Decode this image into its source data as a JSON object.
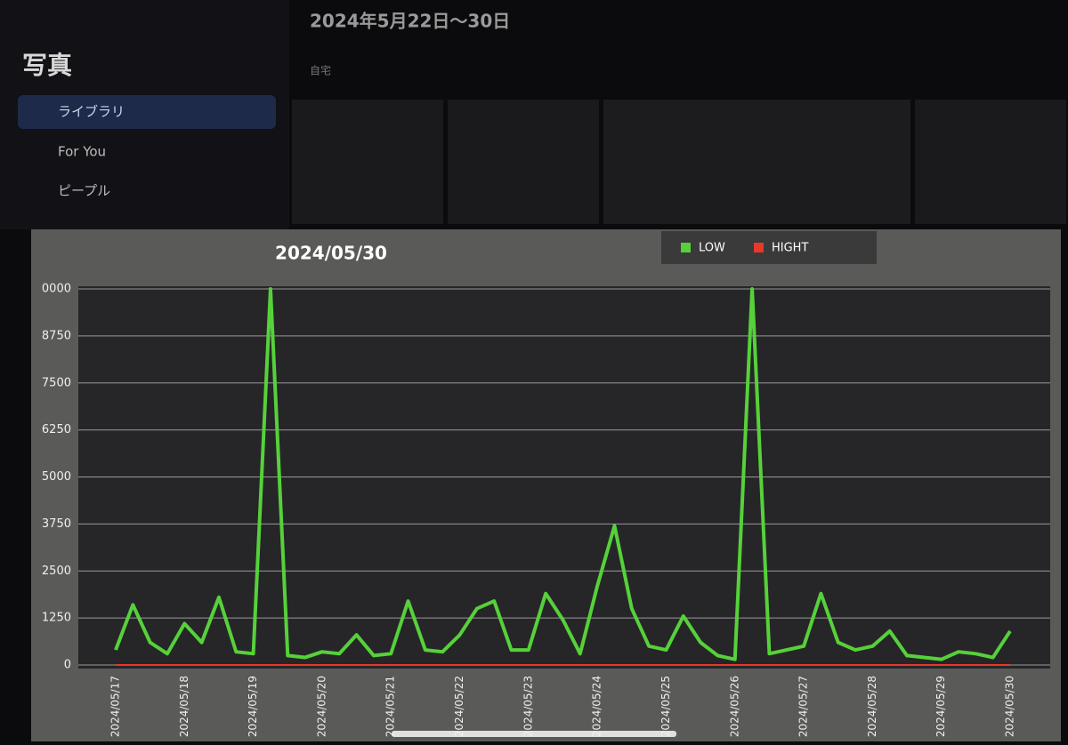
{
  "app": {
    "title": "写真",
    "nav": [
      "ライブラリ",
      "For You",
      "ピープル"
    ],
    "album_title": "2024年5月22日〜30日",
    "album_subtitle": "自宅"
  },
  "chart_data": {
    "type": "line",
    "title": "2024/05/30",
    "categories": [
      "2024/05/17",
      null,
      null,
      null,
      "2024/05/18",
      null,
      null,
      null,
      "2024/05/19",
      null,
      null,
      null,
      "2024/05/20",
      null,
      null,
      null,
      "2024/05/21",
      null,
      null,
      null,
      "2024/05/22",
      null,
      null,
      null,
      "2024/05/23",
      null,
      null,
      null,
      "2024/05/24",
      null,
      null,
      null,
      "2024/05/25",
      null,
      null,
      null,
      "2024/05/26",
      null,
      null,
      null,
      "2024/05/27",
      null,
      null,
      null,
      "2024/05/28",
      null,
      null,
      null,
      "2024/05/29",
      null,
      null,
      null,
      "2024/05/30"
    ],
    "series": [
      {
        "name": "LOW",
        "color": "#56d13a",
        "values": [
          400,
          1600,
          600,
          300,
          1100,
          600,
          1800,
          350,
          300,
          10000,
          250,
          200,
          350,
          300,
          800,
          250,
          300,
          1700,
          400,
          350,
          800,
          1500,
          1700,
          400,
          400,
          1900,
          1200,
          300,
          2100,
          3700,
          1500,
          500,
          400,
          1300,
          600,
          250,
          150,
          10000,
          300,
          400,
          500,
          1900,
          600,
          400,
          500,
          900,
          250,
          200,
          150,
          350,
          300,
          200,
          900
        ]
      },
      {
        "name": "HIGHT",
        "color": "#e8382b",
        "values": [
          0,
          0,
          0,
          0,
          0,
          0,
          0,
          0,
          0,
          0,
          0,
          0,
          0,
          0,
          0,
          0,
          0,
          0,
          0,
          0,
          0,
          0,
          0,
          0,
          0,
          0,
          0,
          0,
          0,
          0,
          0,
          0,
          0,
          0,
          0,
          0,
          0,
          0,
          0,
          0,
          0,
          0,
          0,
          0,
          0,
          0,
          0,
          0,
          0,
          0,
          0,
          0,
          0
        ]
      }
    ],
    "ylim": [
      0,
      10000
    ],
    "yticks": [
      0,
      1250,
      2500,
      3750,
      5000,
      6250,
      7500,
      8750,
      {
        "value": 10000,
        "label": "0000"
      }
    ],
    "grid": true,
    "legend": "top"
  }
}
